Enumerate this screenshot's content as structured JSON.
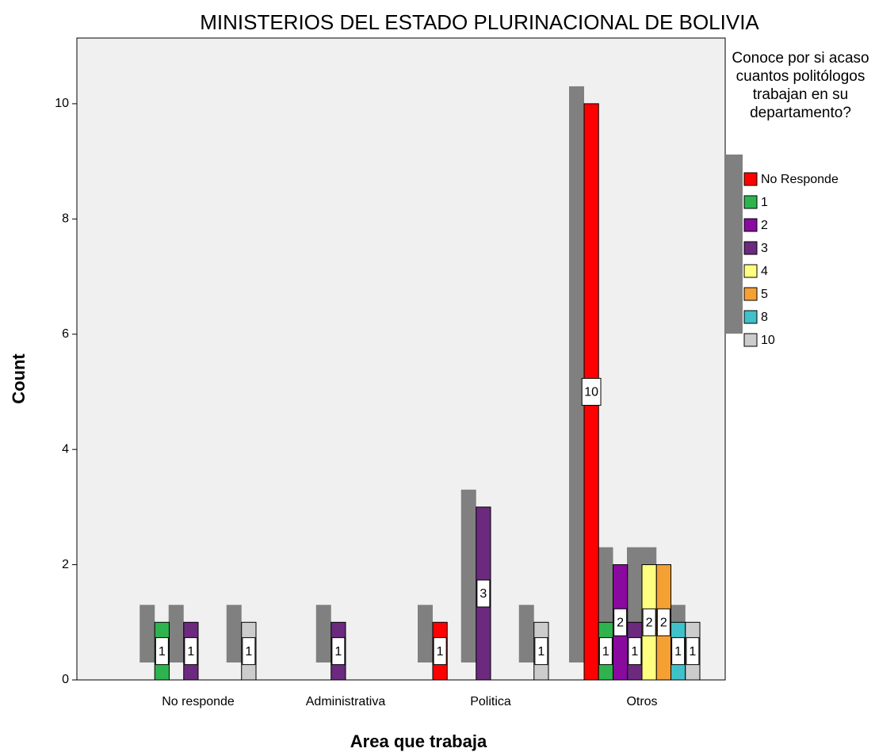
{
  "chart_data": {
    "type": "bar",
    "title": "MINISTERIOS DEL ESTADO PLURINACIONAL DE BOLIVIA",
    "x_label": "Area que trabaja",
    "y_label": "Count",
    "legend_title": "Conoce por si acaso cuantos politólogos trabajan en su departamento?",
    "legend": "right",
    "categories": [
      "No responde",
      "Administrativa",
      "Politica",
      "Otros"
    ],
    "series": [
      {
        "name": "No Responde",
        "color": "#ff0000",
        "values": [
          0,
          0,
          1,
          10
        ]
      },
      {
        "name": "1",
        "color": "#2eb34e",
        "values": [
          1,
          0,
          0,
          1
        ]
      },
      {
        "name": "2",
        "color": "#8a0aa0",
        "values": [
          0,
          0,
          0,
          2
        ]
      },
      {
        "name": "3",
        "color": "#6b2a7e",
        "values": [
          1,
          1,
          3,
          1
        ]
      },
      {
        "name": "4",
        "color": "#ffff80",
        "values": [
          0,
          0,
          0,
          2
        ]
      },
      {
        "name": "5",
        "color": "#f5a033",
        "values": [
          0,
          0,
          0,
          2
        ]
      },
      {
        "name": "8",
        "color": "#40c0c8",
        "values": [
          0,
          0,
          0,
          1
        ]
      },
      {
        "name": "10",
        "color": "#cccccc",
        "values": [
          1,
          0,
          1,
          1
        ]
      }
    ],
    "ylim": [
      0,
      11.14
    ],
    "yticks": [
      0,
      2,
      4,
      6,
      8,
      10
    ]
  }
}
